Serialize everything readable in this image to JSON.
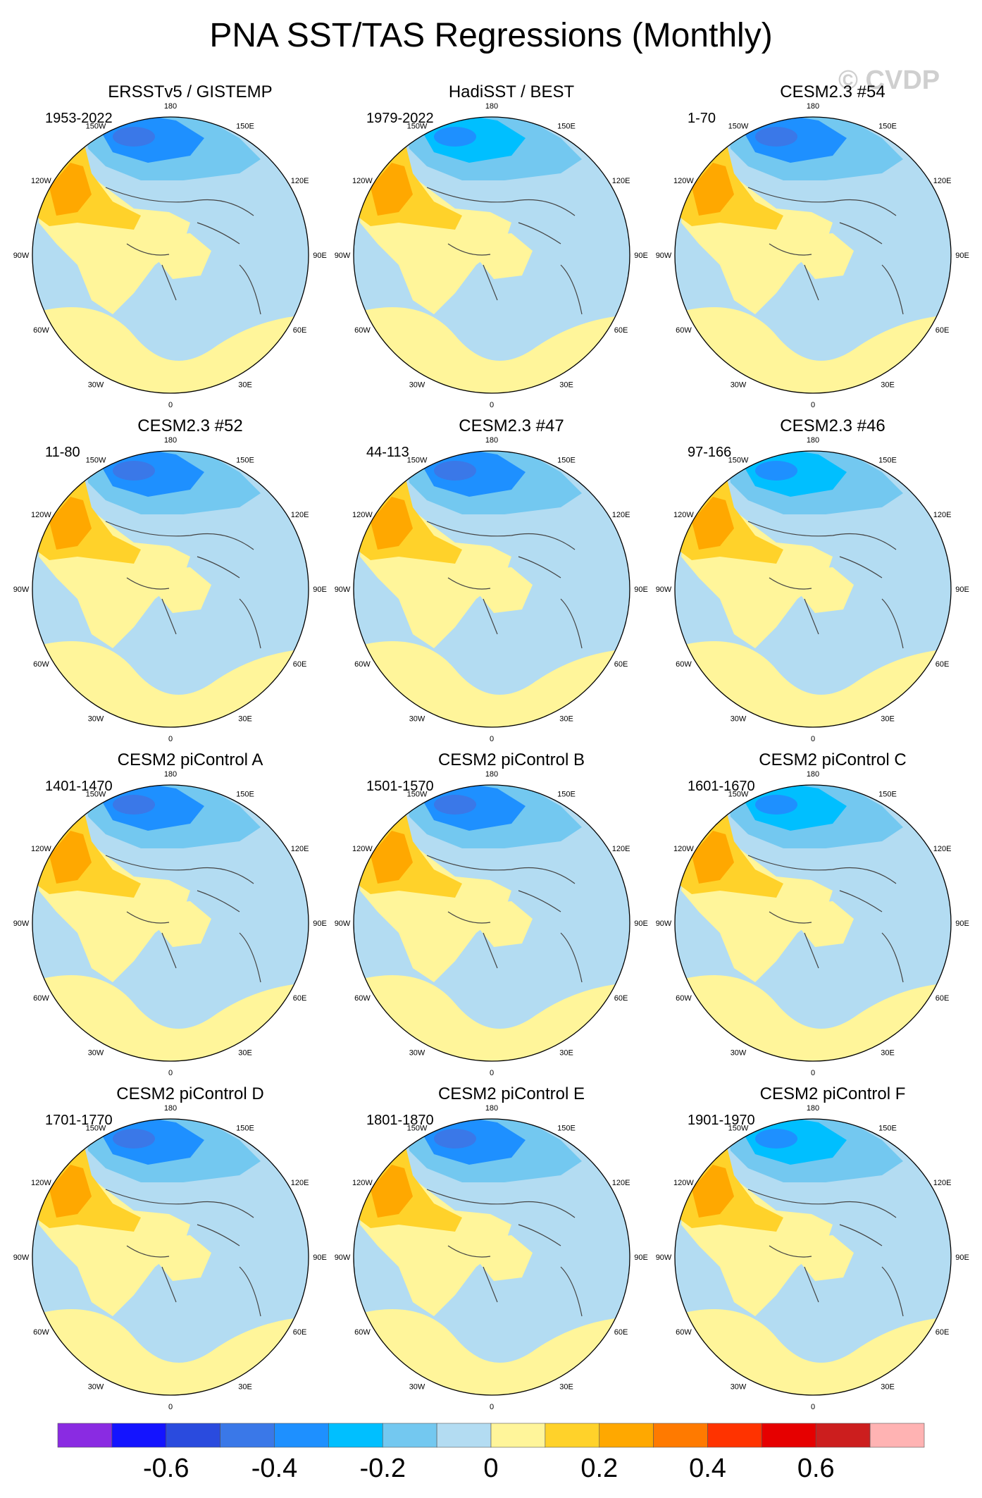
{
  "title": "PNA SST/TAS Regressions (Monthly)",
  "watermark": "© CVDP",
  "longitude_labels": [
    "180",
    "150E",
    "120E",
    "90E",
    "60E",
    "30E",
    "0",
    "30W",
    "60W",
    "90W",
    "120W",
    "150W"
  ],
  "chart_data": {
    "type": "heatmap",
    "projection": "north polar stereographic",
    "title": "PNA SST/TAS Regressions (Monthly)",
    "colorbar": {
      "boundaries": [
        -0.7,
        -0.6,
        -0.5,
        -0.4,
        -0.3,
        -0.2,
        -0.1,
        0,
        0.1,
        0.2,
        0.3,
        0.4,
        0.5,
        0.6,
        0.7
      ],
      "colors": [
        "#8a2be2",
        "#1414ff",
        "#2a4bde",
        "#3a78e8",
        "#1e90ff",
        "#00bfff",
        "#73c8f0",
        "#b3dcf2",
        "#fff59a",
        "#ffd22a",
        "#ffa800",
        "#ff7a00",
        "#ff3300",
        "#e60000",
        "#cc1e1e",
        "#ffb3b3"
      ],
      "tick_values": [
        -0.6,
        -0.4,
        -0.2,
        0,
        0.2,
        0.4,
        0.6
      ],
      "tick_labels": [
        "-0.6",
        "-0.4",
        "-0.2",
        "0",
        "0.2",
        "0.4",
        "0.6"
      ]
    },
    "panels": [
      {
        "name": "ERSSTv5 / GISTEMP",
        "period": "1953-2022",
        "pacific_low": -0.5,
        "na_warm": 0.3
      },
      {
        "name": "HadiSST / BEST",
        "period": "1979-2022",
        "pacific_low": -0.4,
        "na_warm": 0.25
      },
      {
        "name": "CESM2.3 #54",
        "period": "1-70",
        "pacific_low": -0.45,
        "na_warm": 0.35
      },
      {
        "name": "CESM2.3 #52",
        "period": "11-80",
        "pacific_low": -0.5,
        "na_warm": 0.35
      },
      {
        "name": "CESM2.3 #47",
        "period": "44-113",
        "pacific_low": -0.45,
        "na_warm": 0.35
      },
      {
        "name": "CESM2.3 #46",
        "period": "97-166",
        "pacific_low": -0.4,
        "na_warm": 0.3
      },
      {
        "name": "CESM2 piControl A",
        "period": "1401-1470",
        "pacific_low": -0.45,
        "na_warm": 0.35
      },
      {
        "name": "CESM2 piControl B",
        "period": "1501-1570",
        "pacific_low": -0.45,
        "na_warm": 0.35
      },
      {
        "name": "CESM2 piControl C",
        "period": "1601-1670",
        "pacific_low": -0.4,
        "na_warm": 0.35
      },
      {
        "name": "CESM2 piControl D",
        "period": "1701-1770",
        "pacific_low": -0.5,
        "na_warm": 0.35
      },
      {
        "name": "CESM2 piControl E",
        "period": "1801-1870",
        "pacific_low": -0.45,
        "na_warm": 0.3
      },
      {
        "name": "CESM2 piControl F",
        "period": "1901-1970",
        "pacific_low": -0.4,
        "na_warm": 0.3
      }
    ]
  }
}
